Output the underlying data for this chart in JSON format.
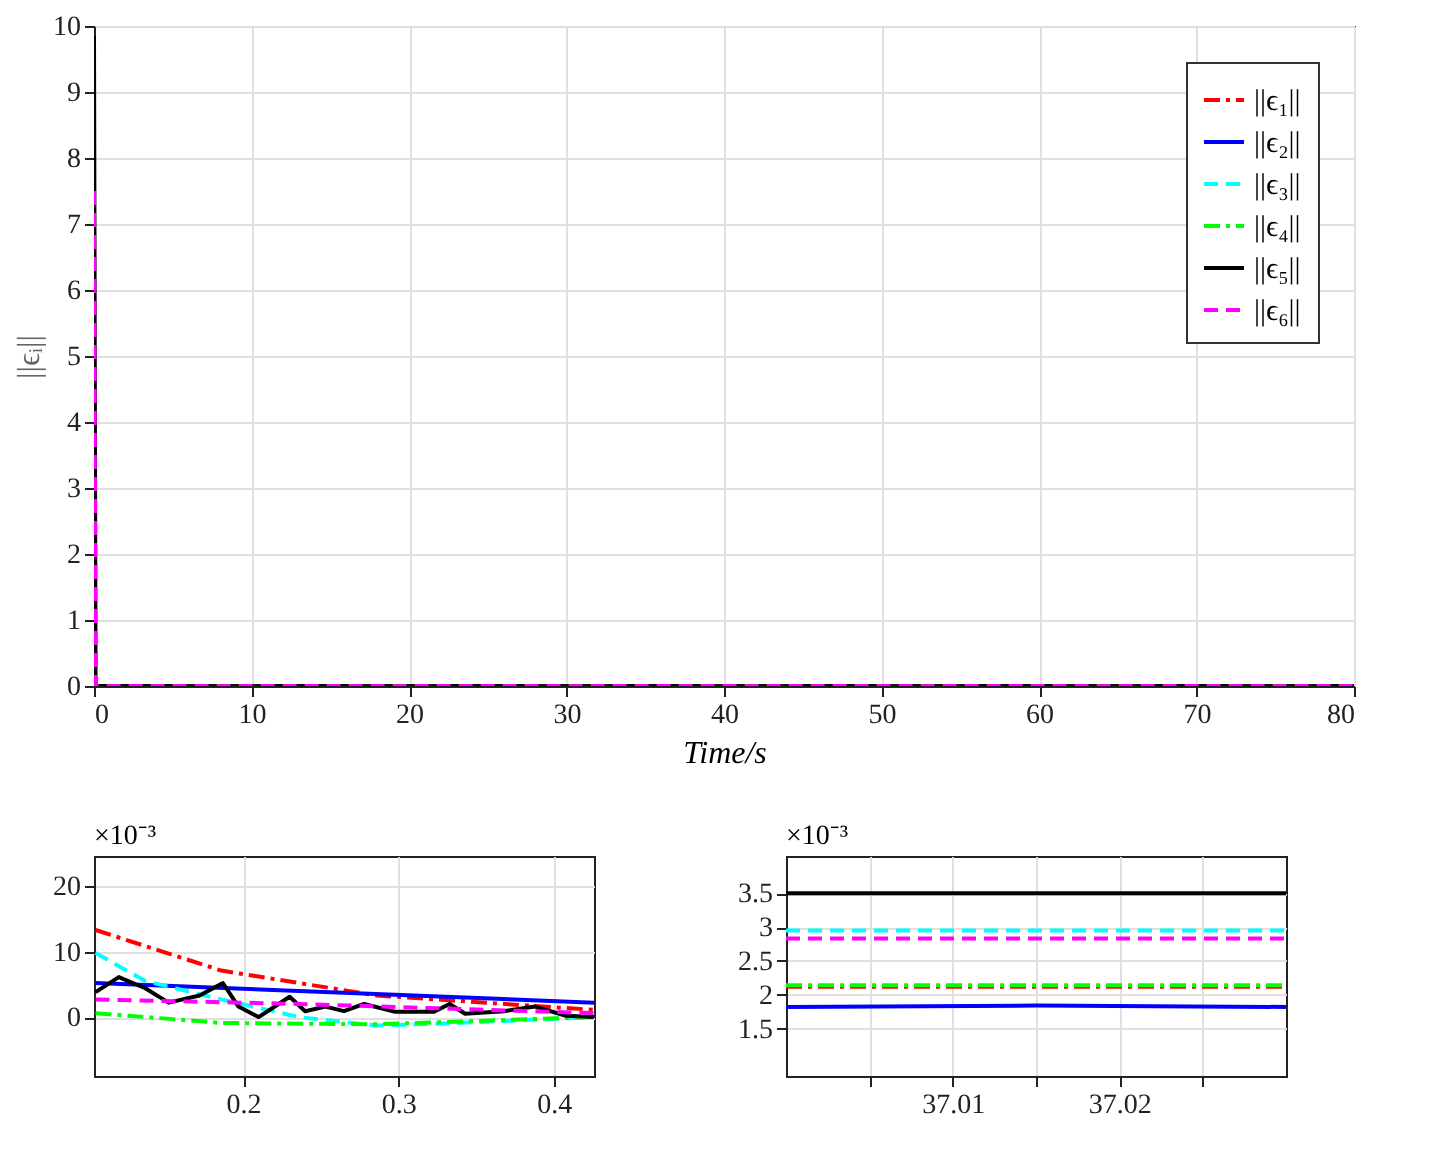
{
  "chart_data": [
    {
      "type": "line",
      "xlabel": "Time/s",
      "ylabel": "||ϵᵢ||",
      "x": [
        0,
        0.1,
        80
      ],
      "xlim": [
        0,
        80
      ],
      "ylim": [
        0,
        10
      ],
      "xticks": [
        0,
        10,
        20,
        30,
        40,
        50,
        60,
        70,
        80
      ],
      "yticks": [
        0,
        1,
        2,
        3,
        4,
        5,
        6,
        7,
        8,
        9,
        10
      ],
      "grid": true,
      "legend": "top right",
      "series": [
        {
          "name": "||ϵ₁||",
          "color": "#ff0000",
          "line_style": "dashdot",
          "values": [
            null,
            null,
            null
          ]
        },
        {
          "name": "||ϵ₂||",
          "color": "#0000ff",
          "line_style": "solid",
          "values": [
            null,
            null,
            null
          ]
        },
        {
          "name": "||ϵ₃||",
          "color": "#00ffff",
          "line_style": "dashed",
          "values": [
            null,
            null,
            null
          ]
        },
        {
          "name": "||ϵ₄||",
          "color": "#00ff00",
          "line_style": "dashdot",
          "values": [
            null,
            null,
            null
          ]
        },
        {
          "name": "||ϵ₅||",
          "color": "#000000",
          "line_style": "solid",
          "values": [
            9.85,
            0,
            0
          ]
        },
        {
          "name": "||ϵ₆||",
          "color": "#ff00ff",
          "line_style": "dashed",
          "values": [
            7.5,
            0,
            0
          ]
        }
      ]
    },
    {
      "type": "line",
      "annotations": [
        "×10⁻³"
      ],
      "xlim": [
        0.104,
        0.426
      ],
      "ylim": [
        -9,
        24.6
      ],
      "xticks": [
        0.2,
        0.3,
        0.4
      ],
      "yticks": [
        0,
        10,
        20
      ],
      "grid": true,
      "series": [
        {
          "color": "#ff0000",
          "line_style": "dashdot",
          "x": [
            0.105,
            0.186,
            0.286,
            0.426
          ],
          "values": [
            13.3,
            7.1,
            3.3,
            1.1
          ]
        },
        {
          "color": "#0000ff",
          "line_style": "solid",
          "x": [
            0.105,
            0.426
          ],
          "values": [
            5.2,
            2.2
          ]
        },
        {
          "color": "#00ffff",
          "line_style": "dashed",
          "x": [
            0.105,
            0.137,
            0.186,
            0.236,
            0.286,
            0.337,
            0.426
          ],
          "values": [
            9.8,
            5.5,
            2.7,
            0,
            -1.3,
            -0.9,
            0
          ]
        },
        {
          "color": "#00ff00",
          "line_style": "dashdot",
          "x": [
            0.105,
            0.186,
            0.286,
            0.426
          ],
          "values": [
            0.6,
            -0.9,
            -1.1,
            0
          ]
        },
        {
          "color": "#000000",
          "line_style": "solid",
          "x": [
            0.105,
            0.12,
            0.137,
            0.152,
            0.172,
            0.187,
            0.197,
            0.21,
            0.23,
            0.24,
            0.253,
            0.265,
            0.278,
            0.298,
            0.323,
            0.333,
            0.343,
            0.368,
            0.388,
            0.408,
            0.426
          ],
          "values": [
            3.8,
            6.1,
            4.4,
            2.2,
            3.3,
            5.2,
            1.6,
            0,
            3.1,
            0.9,
            1.6,
            0.9,
            2.0,
            0.8,
            0.8,
            2.0,
            0.5,
            0.9,
            1.6,
            0.2,
            0
          ]
        },
        {
          "color": "#ff00ff",
          "line_style": "dashed",
          "x": [
            0.105,
            0.236,
            0.426
          ],
          "values": [
            2.7,
            2.0,
            0.6
          ]
        }
      ]
    },
    {
      "type": "line",
      "annotations": [
        "×10⁻³"
      ],
      "x": [
        37.0,
        37.015,
        37.03
      ],
      "xlim": [
        37.0,
        37.03
      ],
      "ylim": [
        0.8,
        4.05
      ],
      "xticks": [
        {
          "value": 37.005,
          "label": null
        },
        37.01,
        {
          "value": 37.015,
          "label": null
        },
        37.02,
        {
          "value": 37.025,
          "label": null
        }
      ],
      "yticks": [
        1.5,
        2,
        2.5,
        3,
        3.5
      ],
      "grid": true,
      "series": [
        {
          "color": "#ff0000",
          "line_style": "dashdot",
          "values": [
            2.12,
            2.12,
            2.12
          ]
        },
        {
          "color": "#0000ff",
          "line_style": "solid",
          "values": [
            1.82,
            1.84,
            1.82
          ]
        },
        {
          "color": "#00ffff",
          "line_style": "dashed",
          "values": [
            2.95,
            2.95,
            2.95
          ]
        },
        {
          "color": "#00ff00",
          "line_style": "dashdot",
          "values": [
            2.14,
            2.14,
            2.14
          ]
        },
        {
          "color": "#000000",
          "line_style": "solid",
          "values": [
            3.5,
            3.5,
            3.5
          ]
        },
        {
          "color": "#ff00ff",
          "line_style": "dashed",
          "values": [
            2.83,
            2.83,
            2.83
          ]
        }
      ]
    }
  ]
}
